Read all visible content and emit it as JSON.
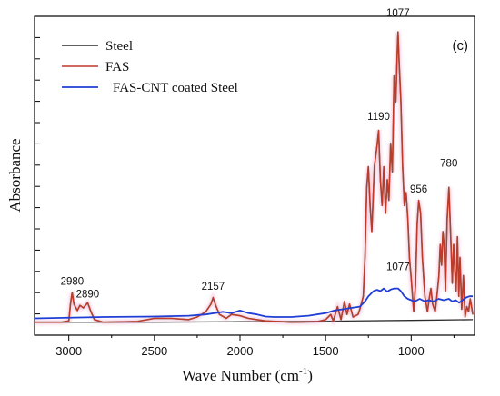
{
  "chart_data": {
    "type": "line",
    "panel_label": "(c)",
    "xlabel": "Wave Number (cm",
    "xlabel_sup": "-1",
    "xlabel_close": ")",
    "ylabel": "Absorbance",
    "xlim": [
      3200,
      630
    ],
    "ylim": [
      -0.05,
      1.18
    ],
    "x_ticks": [
      3000,
      2500,
      2000,
      1500,
      1000
    ],
    "legend_position": "top-left",
    "series": [
      {
        "name": "Steel",
        "color": "#2b2b2b",
        "points": [
          [
            3200,
            0.0
          ],
          [
            2500,
            0.0
          ],
          [
            2000,
            0.002
          ],
          [
            1500,
            0.004
          ],
          [
            1000,
            0.007
          ],
          [
            640,
            0.01
          ]
        ]
      },
      {
        "name": "FAS",
        "color": "#c0392b",
        "points": [
          [
            3200,
            0.0
          ],
          [
            3040,
            0.0
          ],
          [
            3000,
            0.005
          ],
          [
            2990,
            0.07
          ],
          [
            2980,
            0.115
          ],
          [
            2970,
            0.07
          ],
          [
            2950,
            0.045
          ],
          [
            2935,
            0.065
          ],
          [
            2915,
            0.055
          ],
          [
            2890,
            0.075
          ],
          [
            2870,
            0.04
          ],
          [
            2850,
            0.01
          ],
          [
            2800,
            0.0
          ],
          [
            2600,
            0.003
          ],
          [
            2500,
            0.015
          ],
          [
            2400,
            0.015
          ],
          [
            2300,
            0.01
          ],
          [
            2250,
            0.02
          ],
          [
            2200,
            0.04
          ],
          [
            2170,
            0.07
          ],
          [
            2157,
            0.095
          ],
          [
            2145,
            0.07
          ],
          [
            2120,
            0.03
          ],
          [
            2080,
            0.015
          ],
          [
            2050,
            0.03
          ],
          [
            2000,
            0.025
          ],
          [
            1950,
            0.015
          ],
          [
            1900,
            0.01
          ],
          [
            1850,
            0.005
          ],
          [
            1700,
            0.0
          ],
          [
            1550,
            0.002
          ],
          [
            1500,
            0.01
          ],
          [
            1470,
            0.03
          ],
          [
            1455,
            0.005
          ],
          [
            1430,
            0.06
          ],
          [
            1410,
            0.01
          ],
          [
            1390,
            0.08
          ],
          [
            1375,
            0.03
          ],
          [
            1360,
            0.07
          ],
          [
            1340,
            0.02
          ],
          [
            1310,
            0.03
          ],
          [
            1300,
            0.05
          ],
          [
            1280,
            0.1
          ],
          [
            1270,
            0.25
          ],
          [
            1260,
            0.52
          ],
          [
            1250,
            0.6
          ],
          [
            1240,
            0.45
          ],
          [
            1230,
            0.35
          ],
          [
            1215,
            0.6
          ],
          [
            1200,
            0.68
          ],
          [
            1190,
            0.74
          ],
          [
            1180,
            0.55
          ],
          [
            1170,
            0.45
          ],
          [
            1160,
            0.6
          ],
          [
            1150,
            0.42
          ],
          [
            1140,
            0.55
          ],
          [
            1130,
            0.47
          ],
          [
            1120,
            0.69
          ],
          [
            1110,
            0.58
          ],
          [
            1100,
            0.95
          ],
          [
            1090,
            0.85
          ],
          [
            1080,
            1.08
          ],
          [
            1077,
            1.12
          ],
          [
            1070,
            1.0
          ],
          [
            1060,
            0.85
          ],
          [
            1050,
            0.6
          ],
          [
            1040,
            0.45
          ],
          [
            1030,
            0.5
          ],
          [
            1020,
            0.4
          ],
          [
            1010,
            0.25
          ],
          [
            1000,
            0.17
          ],
          [
            990,
            0.08
          ],
          [
            985,
            0.04
          ],
          [
            975,
            0.14
          ],
          [
            965,
            0.38
          ],
          [
            956,
            0.47
          ],
          [
            945,
            0.42
          ],
          [
            935,
            0.25
          ],
          [
            920,
            0.1
          ],
          [
            905,
            0.04
          ],
          [
            895,
            0.09
          ],
          [
            885,
            0.13
          ],
          [
            875,
            0.07
          ],
          [
            860,
            0.04
          ],
          [
            850,
            0.1
          ],
          [
            838,
            0.18
          ],
          [
            830,
            0.3
          ],
          [
            822,
            0.22
          ],
          [
            815,
            0.35
          ],
          [
            808,
            0.3
          ],
          [
            800,
            0.12
          ],
          [
            790,
            0.4
          ],
          [
            780,
            0.52
          ],
          [
            770,
            0.35
          ],
          [
            760,
            0.15
          ],
          [
            752,
            0.3
          ],
          [
            745,
            0.2
          ],
          [
            738,
            0.12
          ],
          [
            730,
            0.33
          ],
          [
            722,
            0.1
          ],
          [
            715,
            0.25
          ],
          [
            705,
            0.05
          ],
          [
            695,
            0.18
          ],
          [
            685,
            0.02
          ],
          [
            675,
            0.06
          ],
          [
            665,
            0.04
          ],
          [
            655,
            0.09
          ],
          [
            645,
            0.05
          ],
          [
            640,
            0.03
          ]
        ]
      },
      {
        "name": "FAS-CNT coated Steel",
        "color": "#1f3ed6",
        "points": [
          [
            3200,
            0.015
          ],
          [
            2800,
            0.02
          ],
          [
            2500,
            0.022
          ],
          [
            2300,
            0.025
          ],
          [
            2200,
            0.03
          ],
          [
            2100,
            0.04
          ],
          [
            2050,
            0.035
          ],
          [
            2000,
            0.045
          ],
          [
            1950,
            0.035
          ],
          [
            1900,
            0.03
          ],
          [
            1850,
            0.022
          ],
          [
            1800,
            0.02
          ],
          [
            1700,
            0.02
          ],
          [
            1600,
            0.025
          ],
          [
            1500,
            0.035
          ],
          [
            1450,
            0.045
          ],
          [
            1400,
            0.05
          ],
          [
            1350,
            0.055
          ],
          [
            1300,
            0.06
          ],
          [
            1270,
            0.08
          ],
          [
            1250,
            0.1
          ],
          [
            1220,
            0.12
          ],
          [
            1200,
            0.125
          ],
          [
            1180,
            0.12
          ],
          [
            1160,
            0.13
          ],
          [
            1140,
            0.118
          ],
          [
            1120,
            0.126
          ],
          [
            1100,
            0.13
          ],
          [
            1077,
            0.13
          ],
          [
            1060,
            0.12
          ],
          [
            1040,
            0.1
          ],
          [
            1020,
            0.09
          ],
          [
            1000,
            0.085
          ],
          [
            980,
            0.08
          ],
          [
            950,
            0.09
          ],
          [
            920,
            0.08
          ],
          [
            900,
            0.085
          ],
          [
            870,
            0.08
          ],
          [
            840,
            0.09
          ],
          [
            810,
            0.085
          ],
          [
            780,
            0.09
          ],
          [
            760,
            0.08
          ],
          [
            740,
            0.085
          ],
          [
            720,
            0.075
          ],
          [
            700,
            0.085
          ],
          [
            680,
            0.095
          ],
          [
            660,
            0.1
          ],
          [
            640,
            0.1
          ]
        ]
      }
    ],
    "annotations": [
      {
        "text": "1077",
        "x": 1077,
        "y": 1.18
      },
      {
        "text": "1190",
        "x": 1190,
        "y": 0.78
      },
      {
        "text": "956",
        "x": 956,
        "y": 0.5
      },
      {
        "text": "780",
        "x": 780,
        "y": 0.6
      },
      {
        "text": "2980",
        "x": 2980,
        "y": 0.145
      },
      {
        "text": "2890",
        "x": 2890,
        "y": 0.095
      },
      {
        "text": "2157",
        "x": 2157,
        "y": 0.125
      },
      {
        "text": "1077",
        "x": 1077,
        "y": 0.2
      }
    ]
  }
}
